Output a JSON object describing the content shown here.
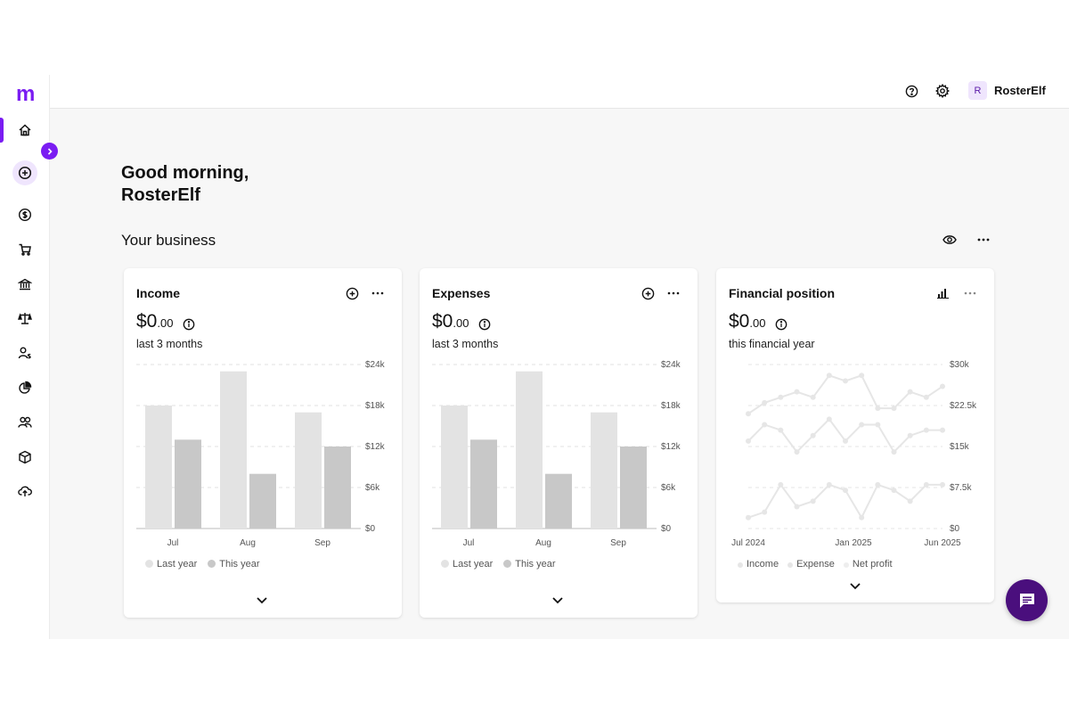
{
  "app": {
    "logo": "m",
    "accent": "#7a1cf2"
  },
  "sidebar": {
    "items": [
      {
        "icon": "home-icon",
        "active": true
      },
      {
        "icon": "create-plus-icon"
      },
      {
        "icon": "dollar-icon"
      },
      {
        "icon": "cart-icon"
      },
      {
        "icon": "bank-icon"
      },
      {
        "icon": "scales-icon"
      },
      {
        "icon": "payroll-person-icon"
      },
      {
        "icon": "pie-chart-icon"
      },
      {
        "icon": "contacts-icon"
      },
      {
        "icon": "inventory-box-icon"
      },
      {
        "icon": "cloud-upload-icon"
      }
    ]
  },
  "topbar": {
    "help_icon": "help-icon",
    "settings_icon": "gear-icon",
    "avatar_initial": "R",
    "username": "RosterElf"
  },
  "greeting": {
    "line1": "Good morning,",
    "line2": "RosterElf"
  },
  "section": {
    "title": "Your business"
  },
  "cards": {
    "income": {
      "title": "Income",
      "amount_main": "$0",
      "amount_cents": ".00",
      "period": "last 3 months",
      "legend": [
        "Last year",
        "This year"
      ]
    },
    "expenses": {
      "title": "Expenses",
      "amount_main": "$0",
      "amount_cents": ".00",
      "period": "last 3 months",
      "legend": [
        "Last year",
        "This year"
      ]
    },
    "financial": {
      "title": "Financial position",
      "amount_main": "$0",
      "amount_cents": ".00",
      "period": "this financial year",
      "legend": [
        "Income",
        "Expense",
        "Net profit"
      ]
    }
  },
  "chart_data": [
    {
      "type": "bar",
      "categories": [
        "Jul",
        "Aug",
        "Sep"
      ],
      "series": [
        {
          "name": "Last year",
          "values": [
            18000,
            23000,
            17000
          ]
        },
        {
          "name": "This year",
          "values": [
            13000,
            8000,
            12000
          ]
        }
      ],
      "yticks": [
        "$0",
        "$6k",
        "$12k",
        "$18k",
        "$24k"
      ],
      "ylim": [
        0,
        24000
      ],
      "colors": [
        "#e3e3e3",
        "#c8c8c8"
      ]
    },
    {
      "type": "bar",
      "categories": [
        "Jul",
        "Aug",
        "Sep"
      ],
      "series": [
        {
          "name": "Last year",
          "values": [
            18000,
            23000,
            17000
          ]
        },
        {
          "name": "This year",
          "values": [
            13000,
            8000,
            12000
          ]
        }
      ],
      "yticks": [
        "$0",
        "$6k",
        "$12k",
        "$18k",
        "$24k"
      ],
      "ylim": [
        0,
        24000
      ],
      "colors": [
        "#e3e3e3",
        "#c8c8c8"
      ]
    },
    {
      "type": "line",
      "xticks": [
        "Jul 2024",
        "Jan 2025",
        "Jun 2025"
      ],
      "yticks": [
        "$0",
        "$7.5k",
        "$15k",
        "$22.5k",
        "$30k"
      ],
      "ylim": [
        0,
        30000
      ],
      "series": [
        {
          "name": "Income",
          "values": [
            21000,
            23000,
            24000,
            25000,
            24000,
            28000,
            27000,
            28000,
            22000,
            22000,
            25000,
            24000,
            26000
          ]
        },
        {
          "name": "Expense",
          "values": [
            16000,
            19000,
            18000,
            14000,
            17000,
            20000,
            16000,
            19000,
            19000,
            14000,
            17000,
            18000,
            18000
          ]
        },
        {
          "name": "Net profit",
          "values": [
            2000,
            3000,
            8000,
            4000,
            5000,
            8000,
            7000,
            2000,
            8000,
            7000,
            5000,
            8000,
            8000
          ]
        }
      ],
      "colors": [
        "#e6e6e6",
        "#e6e6e6",
        "#e6e6e6"
      ]
    }
  ]
}
